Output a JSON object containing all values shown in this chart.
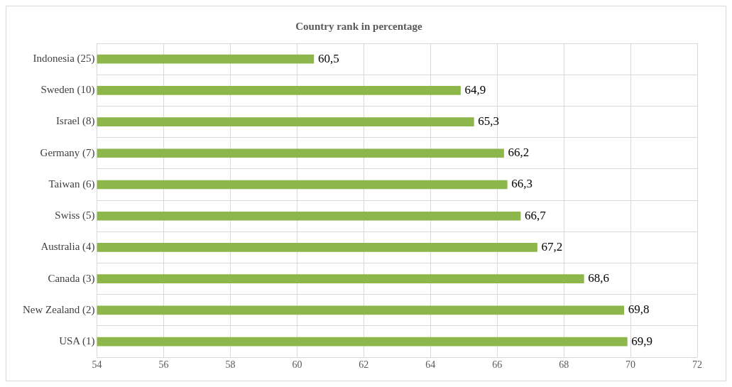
{
  "chart_data": {
    "type": "bar",
    "orientation": "horizontal",
    "title": "Country rank in percentage",
    "categories": [
      "Indonesia (25)",
      "Sweden (10)",
      "Israel (8)",
      "Germany (7)",
      "Taiwan (6)",
      "Swiss (5)",
      "Australia (4)",
      "Canada (3)",
      "New Zealand (2)",
      "USA (1)"
    ],
    "values": [
      60.5,
      64.9,
      65.3,
      66.2,
      66.3,
      66.7,
      67.2,
      68.6,
      69.8,
      69.9
    ],
    "value_labels": [
      "60,5",
      "64,9",
      "65,3",
      "66,2",
      "66,3",
      "66,7",
      "67,2",
      "68,6",
      "69,8",
      "69,9"
    ],
    "color": "#8db74a",
    "xlim": [
      54,
      72
    ],
    "xticks": [
      54,
      56,
      58,
      60,
      62,
      64,
      66,
      68,
      70,
      72
    ],
    "grid": true
  }
}
